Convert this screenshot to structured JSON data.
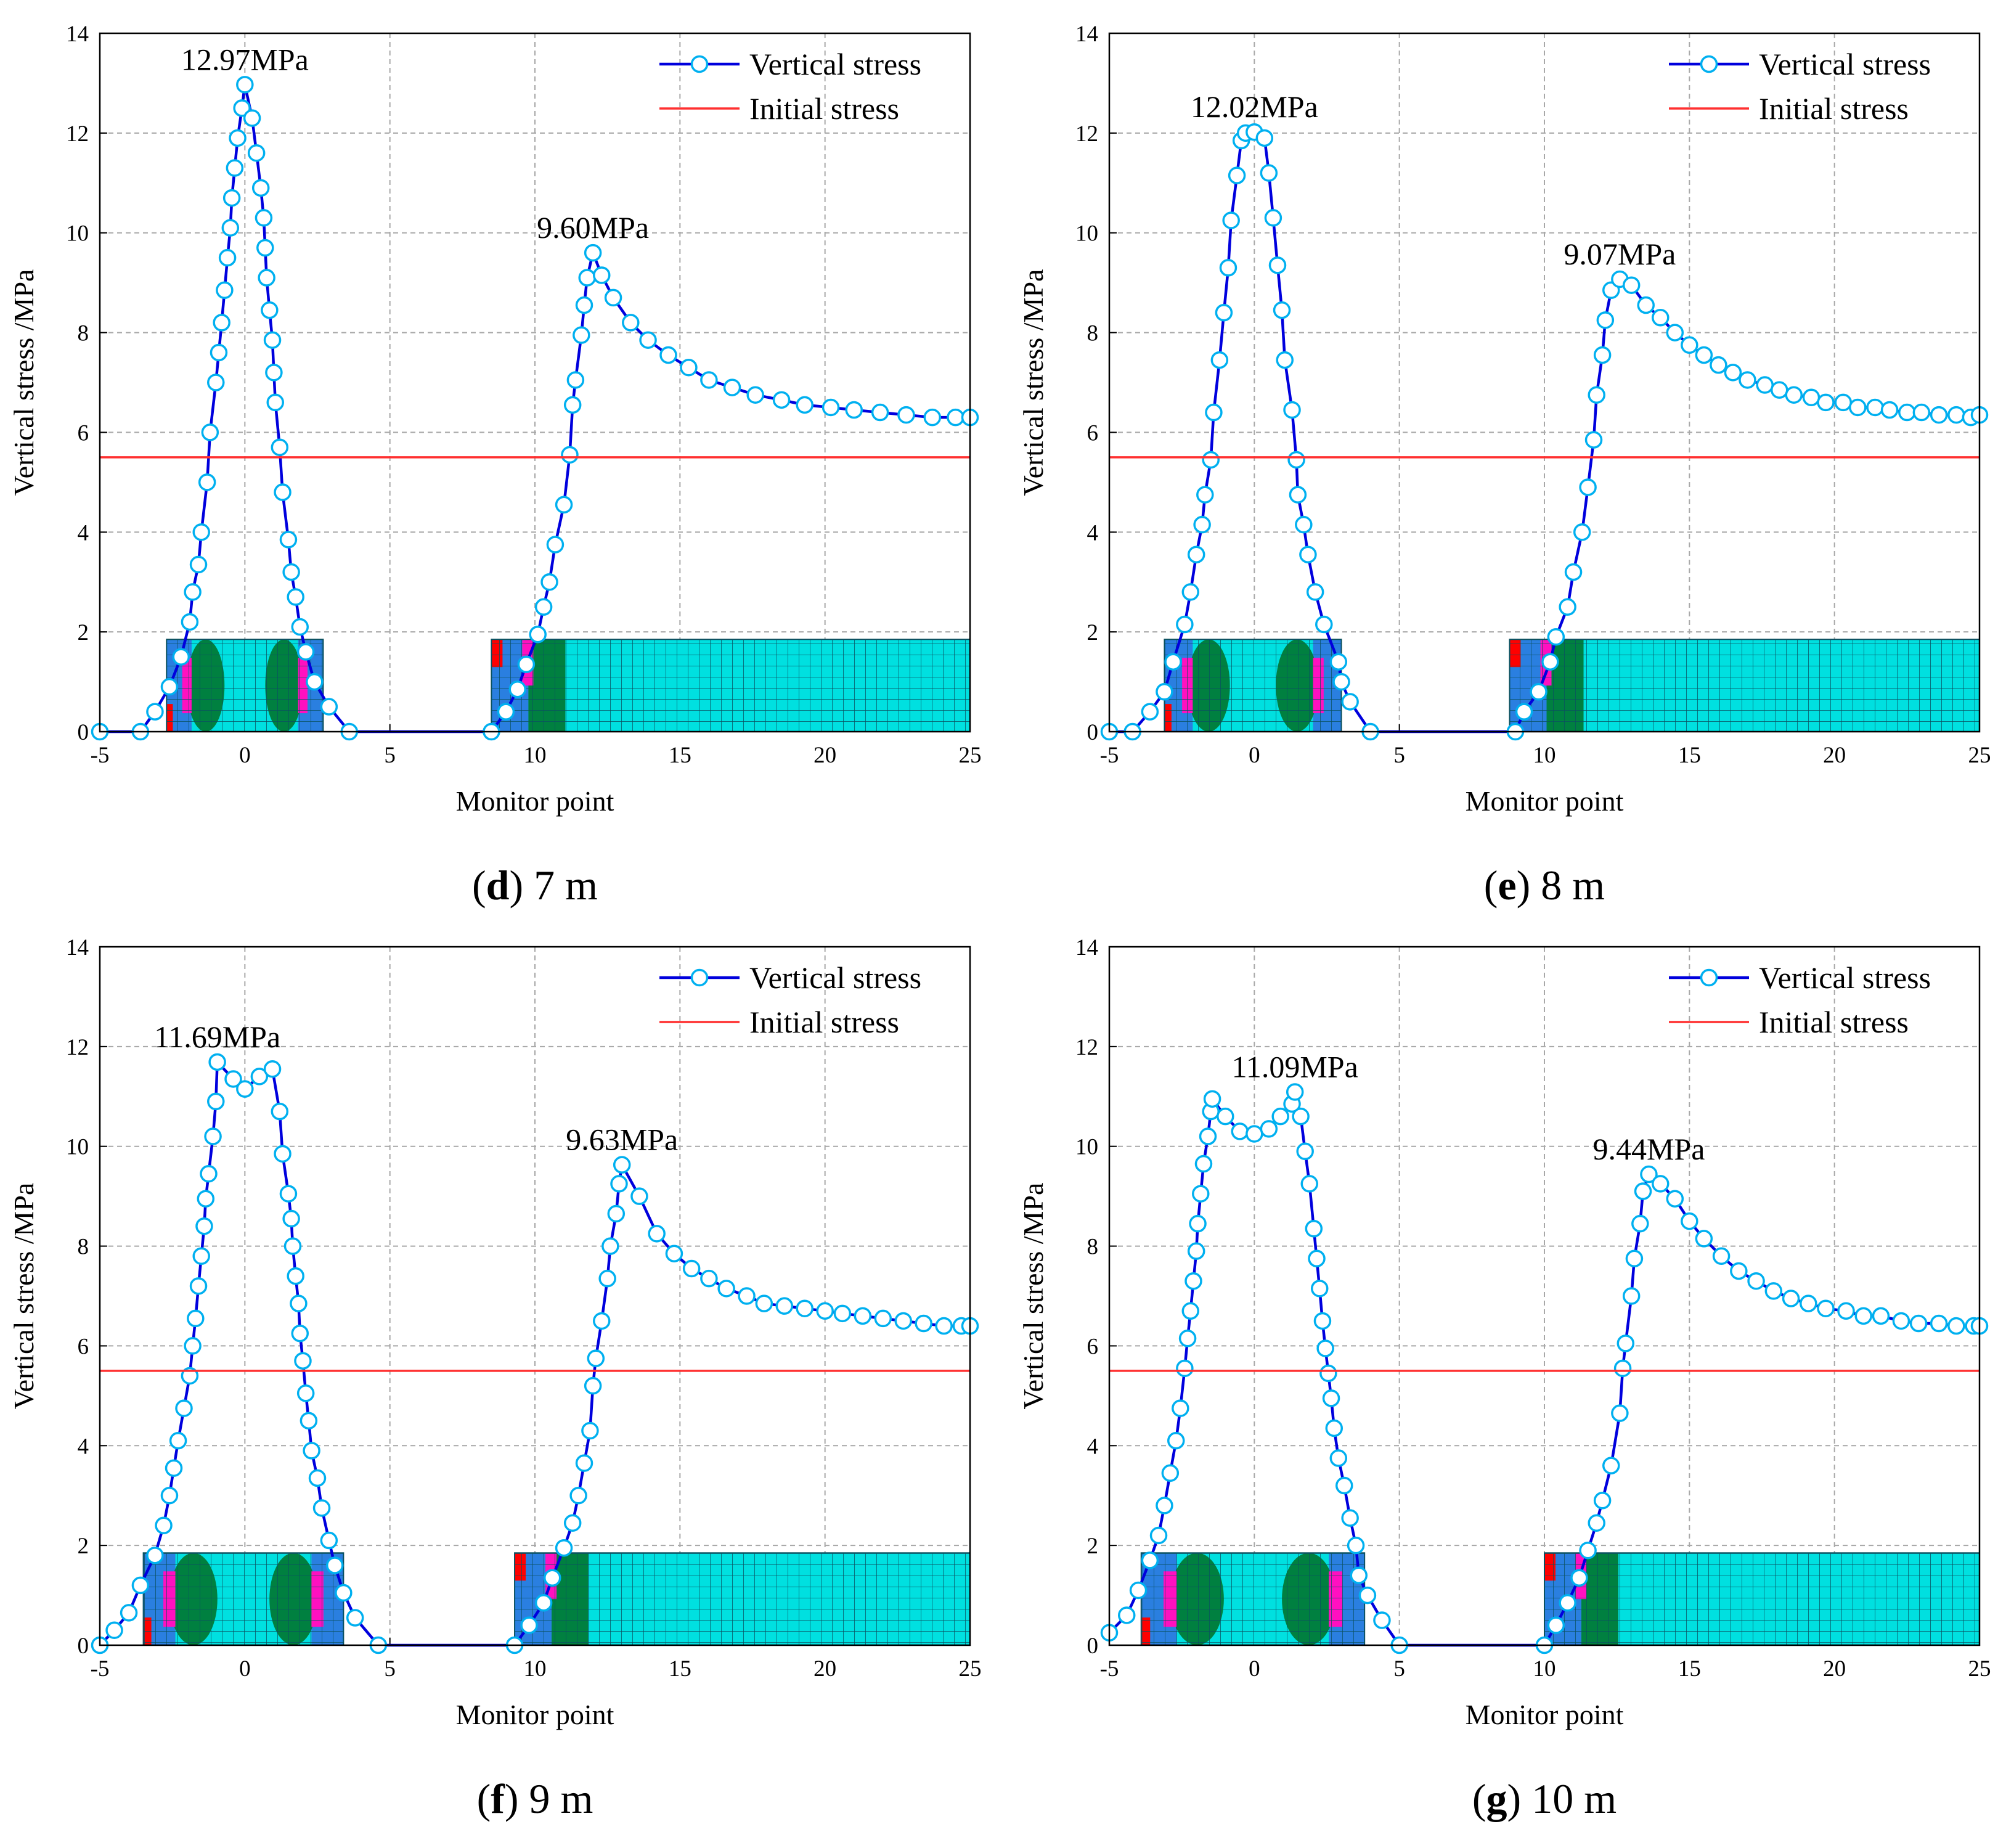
{
  "chart_data": [
    {
      "type": "line",
      "caption_parts": [
        "(",
        "d",
        ") 7 m"
      ],
      "x_label": "Monitor point",
      "y_label": "Vertical stress /MPa",
      "xlim": [
        -5,
        25
      ],
      "xticks": [
        -5,
        0,
        5,
        10,
        15,
        20,
        25
      ],
      "ylim": [
        0,
        14
      ],
      "yticks": [
        0,
        2,
        4,
        6,
        8,
        10,
        12,
        14
      ],
      "grid": true,
      "legend": "upper right",
      "annotations": [
        "12.97MPa",
        "9.60MPa"
      ],
      "series": [
        {
          "name": "Vertical stress",
          "color": "#0000dd",
          "marker_color": "#00b0f0",
          "x": [
            -5,
            -3.6,
            -3.1,
            -2.6,
            -2.2,
            -1.9,
            -1.8,
            -1.6,
            -1.5,
            -1.3,
            -1.2,
            -1.0,
            -0.9,
            -0.8,
            -0.7,
            -0.6,
            -0.5,
            -0.45,
            -0.35,
            -0.25,
            -0.1,
            0,
            0.25,
            0.4,
            0.55,
            0.65,
            0.7,
            0.75,
            0.85,
            0.95,
            1.0,
            1.05,
            1.2,
            1.3,
            1.5,
            1.6,
            1.75,
            1.9,
            2.1,
            2.4,
            2.9,
            3.6,
            8.5,
            9.0,
            9.4,
            9.7,
            10.1,
            10.3,
            10.5,
            10.7,
            11.0,
            11.2,
            11.3,
            11.4,
            11.6,
            11.7,
            11.8,
            12.0,
            12.3,
            12.7,
            13.3,
            13.9,
            14.6,
            15.3,
            16.0,
            16.8,
            17.6,
            18.5,
            19.3,
            20.2,
            21.0,
            21.9,
            22.8,
            23.7,
            24.5,
            25.0
          ],
          "values": [
            0,
            0,
            0.4,
            0.9,
            1.5,
            2.2,
            2.8,
            3.35,
            4.0,
            5.0,
            6.0,
            7.0,
            7.6,
            8.2,
            8.85,
            9.5,
            10.1,
            10.7,
            11.3,
            11.9,
            12.5,
            12.97,
            12.3,
            11.6,
            10.9,
            10.3,
            9.7,
            9.1,
            8.45,
            7.85,
            7.2,
            6.6,
            5.7,
            4.8,
            3.85,
            3.2,
            2.7,
            2.1,
            1.6,
            1.0,
            0.5,
            0,
            0,
            0.4,
            0.85,
            1.35,
            1.95,
            2.5,
            3.0,
            3.75,
            4.55,
            5.55,
            6.55,
            7.05,
            7.95,
            8.55,
            9.1,
            9.6,
            9.15,
            8.7,
            8.2,
            7.85,
            7.55,
            7.3,
            7.05,
            6.9,
            6.75,
            6.65,
            6.55,
            6.5,
            6.45,
            6.4,
            6.35,
            6.3,
            6.3,
            6.3
          ]
        },
        {
          "name": "Initial stress",
          "color": "#ff3030",
          "x": [
            -5,
            25
          ],
          "values": [
            5.5,
            5.5
          ]
        }
      ]
    },
    {
      "type": "line",
      "caption_parts": [
        "(",
        "e",
        ") 8 m"
      ],
      "x_label": "Monitor point",
      "y_label": "Vertical stress /MPa",
      "xlim": [
        -5,
        25
      ],
      "xticks": [
        -5,
        0,
        5,
        10,
        15,
        20,
        25
      ],
      "ylim": [
        0,
        14
      ],
      "yticks": [
        0,
        2,
        4,
        6,
        8,
        10,
        12,
        14
      ],
      "grid": true,
      "legend": "upper right",
      "annotations": [
        "12.02MPa",
        "9.07MPa"
      ],
      "series": [
        {
          "name": "Vertical stress",
          "color": "#0000dd",
          "marker_color": "#00b0f0",
          "x": [
            -5,
            -4.2,
            -3.6,
            -3.1,
            -2.8,
            -2.4,
            -2.2,
            -2.0,
            -1.8,
            -1.7,
            -1.5,
            -1.4,
            -1.2,
            -1.05,
            -0.9,
            -0.8,
            -0.6,
            -0.45,
            -0.3,
            0,
            0.35,
            0.5,
            0.65,
            0.8,
            0.95,
            1.05,
            1.3,
            1.45,
            1.5,
            1.7,
            1.85,
            2.1,
            2.4,
            2.9,
            3.0,
            3.3,
            4.0,
            9.0,
            9.3,
            9.8,
            10.2,
            10.4,
            10.8,
            11.0,
            11.3,
            11.5,
            11.7,
            11.8,
            12.0,
            12.1,
            12.3,
            12.6,
            13.0,
            13.5,
            14.0,
            14.5,
            15.0,
            15.5,
            16.0,
            16.5,
            17.0,
            17.6,
            18.1,
            18.6,
            19.2,
            19.7,
            20.3,
            20.8,
            21.4,
            21.9,
            22.5,
            23.0,
            23.6,
            24.2,
            24.7,
            25.0
          ],
          "values": [
            0,
            0,
            0.4,
            0.8,
            1.4,
            2.15,
            2.8,
            3.55,
            4.15,
            4.75,
            5.45,
            6.4,
            7.45,
            8.4,
            9.3,
            10.25,
            11.15,
            11.85,
            12.0,
            12.02,
            11.9,
            11.2,
            10.3,
            9.35,
            8.45,
            7.45,
            6.45,
            5.45,
            4.75,
            4.15,
            3.55,
            2.8,
            2.15,
            1.4,
            1.0,
            0.6,
            0,
            0,
            0.4,
            0.8,
            1.4,
            1.9,
            2.5,
            3.2,
            4.0,
            4.9,
            5.85,
            6.75,
            7.55,
            8.25,
            8.85,
            9.07,
            8.95,
            8.55,
            8.3,
            8.0,
            7.75,
            7.55,
            7.35,
            7.2,
            7.05,
            6.95,
            6.85,
            6.75,
            6.7,
            6.6,
            6.6,
            6.5,
            6.5,
            6.45,
            6.4,
            6.4,
            6.35,
            6.35,
            6.3,
            6.35
          ]
        },
        {
          "name": "Initial stress",
          "color": "#ff3030",
          "x": [
            -5,
            25
          ],
          "values": [
            5.5,
            5.5
          ]
        }
      ]
    },
    {
      "type": "line",
      "caption_parts": [
        "(",
        "f",
        ") 9 m"
      ],
      "x_label": "Monitor point",
      "y_label": "Vertical stress /MPa",
      "xlim": [
        -5,
        25
      ],
      "xticks": [
        -5,
        0,
        5,
        10,
        15,
        20,
        25
      ],
      "ylim": [
        0,
        14
      ],
      "yticks": [
        0,
        2,
        4,
        6,
        8,
        10,
        12,
        14
      ],
      "grid": true,
      "legend": "upper right",
      "annotations": [
        "11.69MPa",
        "9.63MPa"
      ],
      "series": [
        {
          "name": "Vertical stress",
          "color": "#0000dd",
          "marker_color": "#00b0f0",
          "x": [
            -5,
            -4.5,
            -4.0,
            -3.6,
            -3.1,
            -2.8,
            -2.6,
            -2.45,
            -2.3,
            -2.1,
            -1.9,
            -1.8,
            -1.7,
            -1.6,
            -1.5,
            -1.4,
            -1.35,
            -1.25,
            -1.1,
            -1.0,
            -0.95,
            -0.4,
            0.0,
            0.5,
            0.95,
            1.2,
            1.3,
            1.5,
            1.6,
            1.65,
            1.75,
            1.85,
            1.9,
            2.0,
            2.1,
            2.2,
            2.3,
            2.5,
            2.65,
            2.9,
            3.1,
            3.4,
            3.8,
            4.6,
            9.3,
            9.8,
            10.3,
            10.6,
            11.0,
            11.3,
            11.5,
            11.7,
            11.9,
            12.0,
            12.1,
            12.3,
            12.5,
            12.6,
            12.8,
            12.9,
            13.0,
            13.6,
            14.2,
            14.8,
            15.4,
            16.0,
            16.6,
            17.3,
            17.9,
            18.6,
            19.3,
            20.0,
            20.6,
            21.3,
            22.0,
            22.7,
            23.4,
            24.1,
            24.7,
            25.0
          ],
          "values": [
            0,
            0.3,
            0.65,
            1.2,
            1.8,
            2.4,
            3.0,
            3.55,
            4.1,
            4.75,
            5.4,
            6.0,
            6.55,
            7.2,
            7.8,
            8.4,
            8.95,
            9.45,
            10.2,
            10.9,
            11.69,
            11.35,
            11.15,
            11.4,
            11.55,
            10.7,
            9.85,
            9.05,
            8.55,
            8.0,
            7.4,
            6.85,
            6.25,
            5.7,
            5.05,
            4.5,
            3.9,
            3.35,
            2.75,
            2.1,
            1.6,
            1.05,
            0.55,
            0,
            0,
            0.4,
            0.85,
            1.35,
            1.95,
            2.45,
            3.0,
            3.65,
            4.3,
            5.2,
            5.75,
            6.5,
            7.35,
            8.0,
            8.65,
            9.25,
            9.63,
            9.0,
            8.25,
            7.85,
            7.55,
            7.35,
            7.15,
            7.0,
            6.85,
            6.8,
            6.75,
            6.7,
            6.65,
            6.6,
            6.55,
            6.5,
            6.45,
            6.4,
            6.4,
            6.4
          ]
        },
        {
          "name": "Initial stress",
          "color": "#ff3030",
          "x": [
            -5,
            25
          ],
          "values": [
            5.5,
            5.5
          ]
        }
      ]
    },
    {
      "type": "line",
      "caption_parts": [
        "(",
        "g",
        ") 10 m"
      ],
      "x_label": "Monitor point",
      "y_label": "Vertical stress /MPa",
      "xlim": [
        -5,
        25
      ],
      "xticks": [
        -5,
        0,
        5,
        10,
        15,
        20,
        25
      ],
      "ylim": [
        0,
        14
      ],
      "yticks": [
        0,
        2,
        4,
        6,
        8,
        10,
        12,
        14
      ],
      "grid": true,
      "legend": "upper right",
      "annotations": [
        "11.09MPa",
        "9.44MPa"
      ],
      "series": [
        {
          "name": "Vertical stress",
          "color": "#0000dd",
          "marker_color": "#00b0f0",
          "x": [
            -5,
            -4.4,
            -4.0,
            -3.6,
            -3.3,
            -3.1,
            -2.9,
            -2.7,
            -2.55,
            -2.4,
            -2.3,
            -2.2,
            -2.1,
            -2.0,
            -1.95,
            -1.85,
            -1.75,
            -1.6,
            -1.5,
            -1.45,
            -1.0,
            -0.5,
            0.0,
            0.5,
            0.9,
            1.3,
            1.4,
            1.6,
            1.75,
            1.9,
            2.05,
            2.15,
            2.25,
            2.35,
            2.45,
            2.55,
            2.65,
            2.75,
            2.9,
            3.1,
            3.3,
            3.5,
            3.6,
            3.9,
            4.4,
            5.0,
            10.0,
            10.4,
            10.8,
            11.2,
            11.5,
            11.8,
            12.0,
            12.3,
            12.6,
            12.7,
            12.8,
            13.0,
            13.1,
            13.3,
            13.4,
            13.6,
            14.0,
            14.5,
            15.0,
            15.5,
            16.1,
            16.7,
            17.3,
            17.9,
            18.5,
            19.1,
            19.7,
            20.4,
            21.0,
            21.6,
            22.3,
            22.9,
            23.6,
            24.2,
            24.8,
            25.0
          ],
          "values": [
            0.25,
            0.6,
            1.1,
            1.7,
            2.2,
            2.8,
            3.45,
            4.1,
            4.75,
            5.55,
            6.15,
            6.7,
            7.3,
            7.9,
            8.45,
            9.05,
            9.65,
            10.2,
            10.7,
            10.95,
            10.6,
            10.3,
            10.25,
            10.35,
            10.6,
            10.85,
            11.09,
            10.6,
            9.9,
            9.25,
            8.35,
            7.75,
            7.15,
            6.5,
            5.95,
            5.45,
            4.95,
            4.35,
            3.75,
            3.2,
            2.55,
            2.0,
            1.4,
            1.0,
            0.5,
            0,
            0,
            0.4,
            0.85,
            1.35,
            1.9,
            2.45,
            2.9,
            3.6,
            4.65,
            5.55,
            6.05,
            7.0,
            7.75,
            8.45,
            9.1,
            9.44,
            9.25,
            8.95,
            8.5,
            8.15,
            7.8,
            7.5,
            7.3,
            7.1,
            6.95,
            6.85,
            6.75,
            6.7,
            6.6,
            6.6,
            6.5,
            6.45,
            6.45,
            6.4,
            6.4,
            6.4
          ]
        },
        {
          "name": "Initial stress",
          "color": "#ff3030",
          "x": [
            -5,
            25
          ],
          "values": [
            5.5,
            5.5
          ]
        }
      ]
    }
  ]
}
